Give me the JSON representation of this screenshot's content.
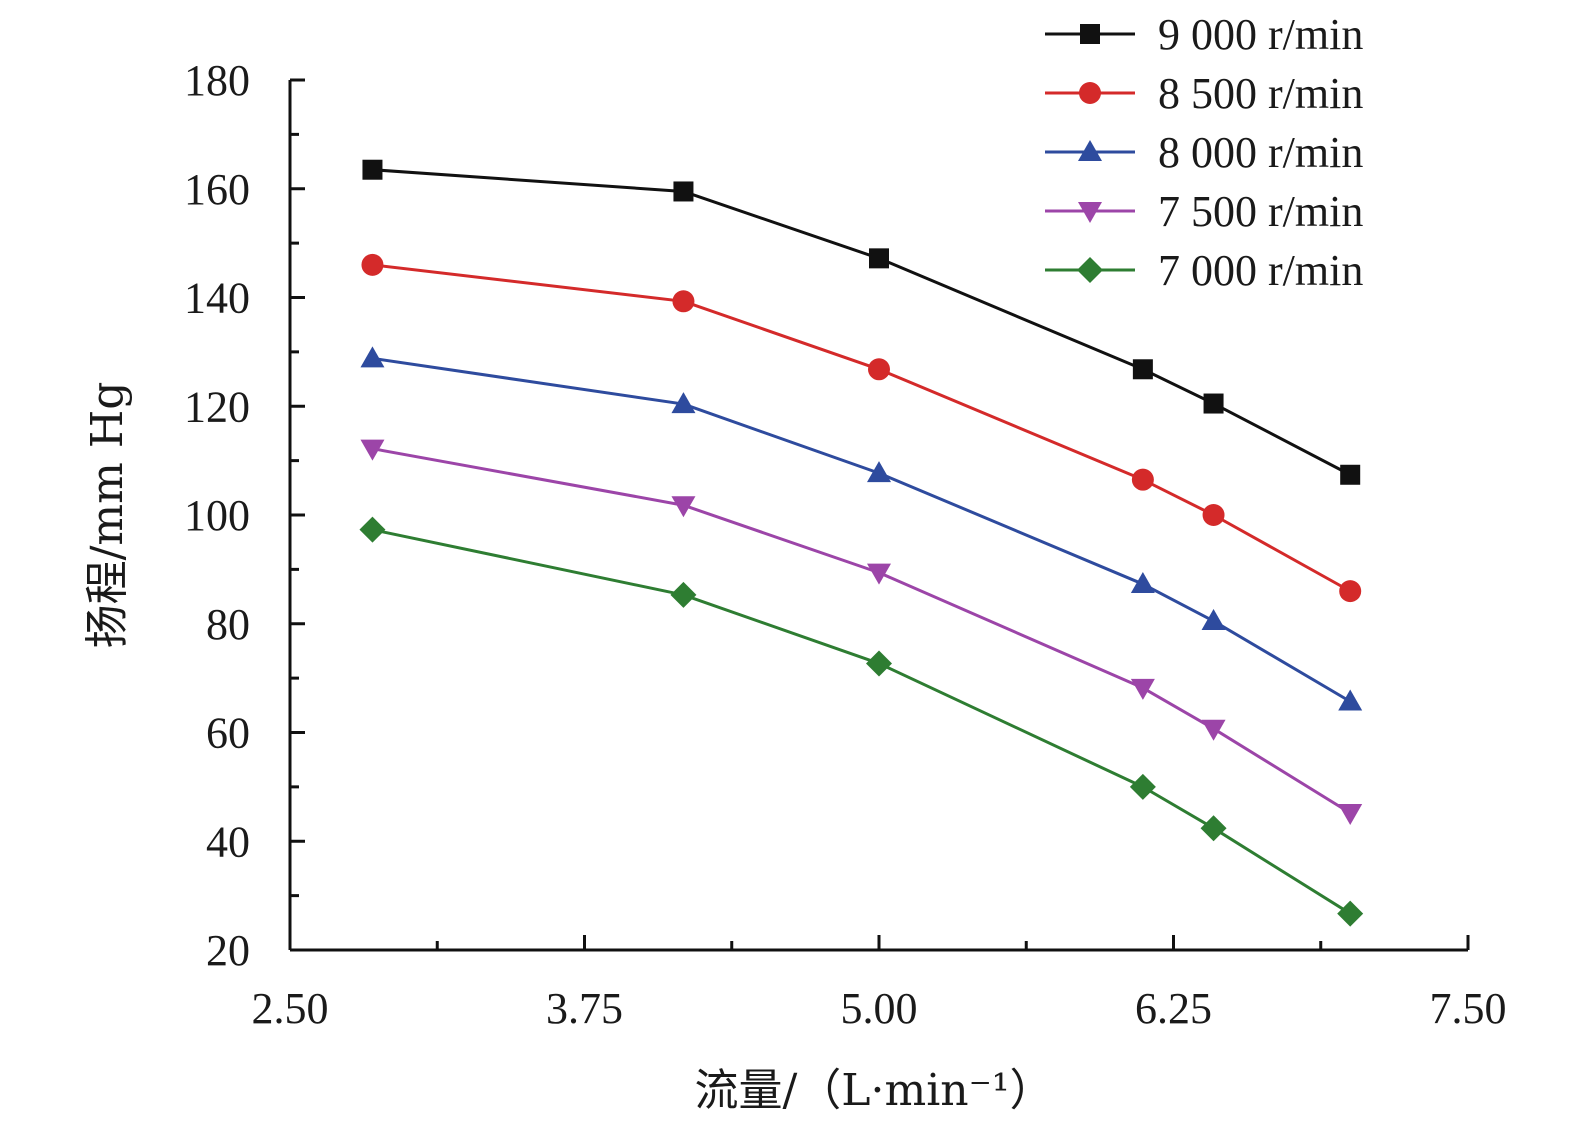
{
  "chart_data": {
    "type": "line",
    "xlabel": "流量/（L·min⁻¹）",
    "ylabel": "扬程/mm Hg",
    "xlim": [
      2.5,
      7.5
    ],
    "ylim": [
      20,
      180
    ],
    "x_ticks": [
      "2.50",
      "3.75",
      "5.00",
      "6.25",
      "7.50"
    ],
    "x_tick_values": [
      2.5,
      3.75,
      5.0,
      6.25,
      7.5
    ],
    "y_ticks": [
      "20",
      "40",
      "60",
      "80",
      "100",
      "120",
      "140",
      "160",
      "180"
    ],
    "y_tick_values": [
      20,
      40,
      60,
      80,
      100,
      120,
      140,
      160,
      180
    ],
    "grid": false,
    "legend_position": "top-right",
    "x": [
      2.85,
      4.17,
      5.0,
      6.12,
      6.42,
      7.0
    ],
    "series": [
      {
        "name": "9 000 r/min",
        "color": "#111111",
        "marker": "square",
        "values": [
          163.5,
          159.5,
          147.2,
          126.8,
          120.5,
          107.4
        ]
      },
      {
        "name": "8 500 r/min",
        "color": "#d42a2a",
        "marker": "circle",
        "values": [
          146.0,
          139.3,
          126.8,
          106.5,
          100.0,
          86.0
        ]
      },
      {
        "name": "8 000 r/min",
        "color": "#2e4b9e",
        "marker": "triangle-up",
        "values": [
          128.8,
          120.4,
          107.7,
          87.3,
          80.5,
          65.7
        ]
      },
      {
        "name": "7 500 r/min",
        "color": "#9c45a8",
        "marker": "triangle-down",
        "values": [
          112.2,
          101.8,
          89.4,
          68.2,
          60.7,
          45.2
        ]
      },
      {
        "name": "7 000 r/min",
        "color": "#2e7d32",
        "marker": "diamond",
        "values": [
          97.3,
          85.3,
          72.7,
          50.0,
          42.4,
          26.7
        ]
      }
    ]
  }
}
